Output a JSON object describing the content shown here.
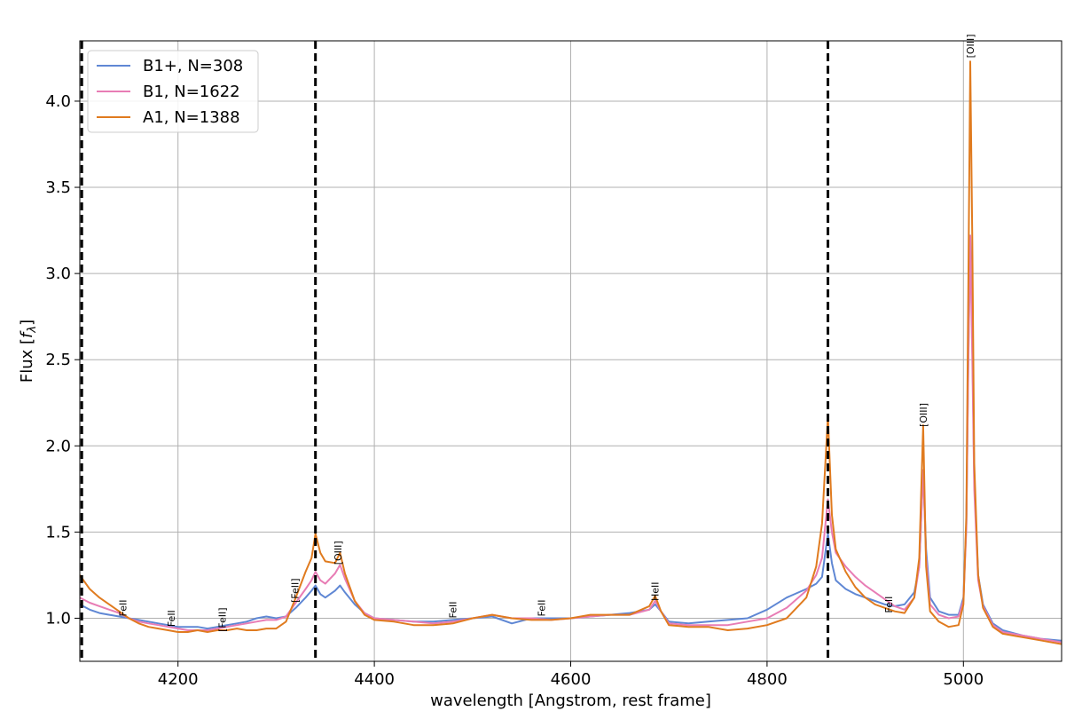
{
  "chart_data": {
    "type": "line",
    "title": "",
    "xlabel": "wavelength [Angstrom, rest frame]",
    "ylabel": "Flux [fλ]",
    "xlim": [
      4100,
      5100
    ],
    "ylim": [
      0.75,
      4.35
    ],
    "xticks": [
      4200,
      4400,
      4600,
      4800,
      5000
    ],
    "yticks": [
      1.0,
      1.5,
      2.0,
      2.5,
      3.0,
      3.5,
      4.0
    ],
    "xtick_labels": [
      "4200",
      "4400",
      "4600",
      "4800",
      "5000"
    ],
    "ytick_labels": [
      "1.0",
      "1.5",
      "2.0",
      "2.5",
      "3.0",
      "3.5",
      "4.0"
    ],
    "grid": true,
    "legend_position": "top-left",
    "vlines": [
      4102,
      4340,
      4862
    ],
    "line_labels": [
      {
        "text": "FeII",
        "x": 4144,
        "y": 1.01
      },
      {
        "text": "FeII",
        "x": 4193,
        "y": 0.95
      },
      {
        "text": "[FeII]",
        "x": 4245,
        "y": 0.92
      },
      {
        "text": "[FeII]",
        "x": 4319,
        "y": 1.09
      },
      {
        "text": "[OIII]",
        "x": 4363,
        "y": 1.31
      },
      {
        "text": "FeII",
        "x": 4480,
        "y": 1.0
      },
      {
        "text": "FeII",
        "x": 4570,
        "y": 1.01
      },
      {
        "text": "HeII",
        "x": 4686,
        "y": 1.1
      },
      {
        "text": "FeII",
        "x": 4924,
        "y": 1.03
      },
      {
        "text": "[OIII]",
        "x": 4959,
        "y": 2.11
      },
      {
        "text": "[OIII]",
        "x": 5007,
        "y": 4.25
      }
    ],
    "series": [
      {
        "name": "B1+, N=308",
        "color": "#5f87d4",
        "x": [
          4100,
          4110,
          4120,
          4130,
          4140,
          4150,
          4160,
          4170,
          4180,
          4190,
          4200,
          4210,
          4220,
          4230,
          4240,
          4250,
          4260,
          4270,
          4280,
          4290,
          4300,
          4310,
          4320,
          4330,
          4336,
          4340,
          4345,
          4350,
          4360,
          4365,
          4370,
          4380,
          4390,
          4400,
          4420,
          4440,
          4460,
          4480,
          4500,
          4520,
          4540,
          4560,
          4580,
          4600,
          4620,
          4640,
          4660,
          4680,
          4686,
          4692,
          4700,
          4720,
          4740,
          4760,
          4780,
          4800,
          4820,
          4840,
          4850,
          4856,
          4862,
          4866,
          4870,
          4880,
          4890,
          4900,
          4910,
          4920,
          4930,
          4940,
          4950,
          4955,
          4959,
          4962,
          4966,
          4975,
          4985,
          4995,
          5000,
          5003,
          5005,
          5007,
          5009,
          5011,
          5015,
          5020,
          5030,
          5040,
          5060,
          5080,
          5100
        ],
        "y": [
          1.08,
          1.05,
          1.03,
          1.02,
          1.01,
          1.0,
          0.99,
          0.98,
          0.97,
          0.96,
          0.95,
          0.95,
          0.95,
          0.94,
          0.95,
          0.96,
          0.97,
          0.98,
          1.0,
          1.01,
          1.0,
          1.01,
          1.06,
          1.12,
          1.16,
          1.19,
          1.14,
          1.12,
          1.16,
          1.19,
          1.15,
          1.08,
          1.03,
          1.0,
          0.99,
          0.98,
          0.98,
          0.99,
          1.0,
          1.01,
          0.97,
          1.0,
          1.0,
          1.0,
          1.01,
          1.02,
          1.03,
          1.05,
          1.08,
          1.04,
          0.98,
          0.97,
          0.98,
          0.99,
          1.0,
          1.05,
          1.12,
          1.17,
          1.2,
          1.24,
          1.49,
          1.32,
          1.22,
          1.17,
          1.14,
          1.12,
          1.1,
          1.08,
          1.07,
          1.08,
          1.15,
          1.3,
          1.86,
          1.4,
          1.12,
          1.04,
          1.02,
          1.02,
          1.12,
          1.55,
          2.5,
          3.22,
          2.6,
          1.8,
          1.25,
          1.08,
          0.97,
          0.93,
          0.9,
          0.88,
          0.87
        ]
      },
      {
        "name": "B1, N=1622",
        "color": "#e87db5",
        "x": [
          4100,
          4110,
          4120,
          4130,
          4140,
          4150,
          4160,
          4170,
          4180,
          4190,
          4200,
          4210,
          4220,
          4230,
          4240,
          4250,
          4260,
          4270,
          4280,
          4290,
          4300,
          4310,
          4320,
          4330,
          4336,
          4340,
          4345,
          4350,
          4360,
          4365,
          4370,
          4380,
          4390,
          4400,
          4420,
          4440,
          4460,
          4480,
          4500,
          4520,
          4540,
          4560,
          4580,
          4600,
          4620,
          4640,
          4660,
          4680,
          4686,
          4692,
          4700,
          4720,
          4740,
          4760,
          4780,
          4800,
          4820,
          4840,
          4850,
          4856,
          4862,
          4866,
          4870,
          4880,
          4890,
          4900,
          4910,
          4920,
          4930,
          4940,
          4950,
          4955,
          4959,
          4962,
          4966,
          4975,
          4985,
          4995,
          5000,
          5003,
          5005,
          5007,
          5009,
          5011,
          5015,
          5020,
          5030,
          5040,
          5060,
          5080,
          5100
        ],
        "y": [
          1.12,
          1.09,
          1.07,
          1.05,
          1.03,
          1.0,
          0.98,
          0.97,
          0.96,
          0.95,
          0.94,
          0.93,
          0.93,
          0.93,
          0.94,
          0.95,
          0.96,
          0.97,
          0.98,
          0.99,
          0.99,
          1.01,
          1.09,
          1.17,
          1.22,
          1.27,
          1.22,
          1.2,
          1.26,
          1.31,
          1.23,
          1.1,
          1.03,
          1.0,
          0.99,
          0.98,
          0.97,
          0.98,
          1.0,
          1.02,
          1.0,
          1.0,
          0.99,
          1.0,
          1.01,
          1.02,
          1.02,
          1.05,
          1.1,
          1.04,
          0.97,
          0.96,
          0.96,
          0.96,
          0.98,
          1.0,
          1.06,
          1.16,
          1.25,
          1.35,
          1.69,
          1.5,
          1.38,
          1.3,
          1.24,
          1.19,
          1.15,
          1.11,
          1.07,
          1.05,
          1.12,
          1.3,
          1.86,
          1.35,
          1.08,
          1.02,
          1.0,
          1.01,
          1.1,
          1.52,
          2.45,
          3.22,
          2.5,
          1.75,
          1.22,
          1.07,
          0.96,
          0.92,
          0.9,
          0.88,
          0.86
        ]
      },
      {
        "name": "A1, N=1388",
        "color": "#e07b1f",
        "x": [
          4100,
          4110,
          4120,
          4130,
          4140,
          4150,
          4160,
          4170,
          4180,
          4190,
          4200,
          4210,
          4220,
          4230,
          4240,
          4250,
          4260,
          4270,
          4280,
          4290,
          4300,
          4310,
          4320,
          4330,
          4336,
          4340,
          4345,
          4350,
          4360,
          4365,
          4370,
          4380,
          4390,
          4400,
          4420,
          4440,
          4460,
          4480,
          4500,
          4520,
          4540,
          4560,
          4580,
          4600,
          4620,
          4640,
          4660,
          4680,
          4686,
          4692,
          4700,
          4720,
          4740,
          4760,
          4780,
          4800,
          4820,
          4840,
          4850,
          4856,
          4862,
          4866,
          4870,
          4880,
          4890,
          4900,
          4910,
          4920,
          4930,
          4940,
          4950,
          4955,
          4959,
          4962,
          4966,
          4975,
          4985,
          4995,
          5000,
          5003,
          5005,
          5007,
          5009,
          5011,
          5015,
          5020,
          5030,
          5040,
          5060,
          5080,
          5100
        ],
        "y": [
          1.25,
          1.17,
          1.12,
          1.08,
          1.04,
          1.0,
          0.97,
          0.95,
          0.94,
          0.93,
          0.92,
          0.92,
          0.93,
          0.92,
          0.93,
          0.93,
          0.94,
          0.93,
          0.93,
          0.94,
          0.94,
          0.98,
          1.12,
          1.27,
          1.35,
          1.49,
          1.38,
          1.33,
          1.32,
          1.38,
          1.26,
          1.1,
          1.02,
          0.99,
          0.98,
          0.96,
          0.96,
          0.97,
          1.0,
          1.02,
          1.0,
          0.99,
          0.99,
          1.0,
          1.02,
          1.02,
          1.02,
          1.07,
          1.13,
          1.04,
          0.96,
          0.95,
          0.95,
          0.93,
          0.94,
          0.96,
          1.0,
          1.12,
          1.3,
          1.55,
          2.17,
          1.6,
          1.4,
          1.27,
          1.18,
          1.12,
          1.08,
          1.06,
          1.04,
          1.03,
          1.12,
          1.35,
          2.12,
          1.3,
          1.04,
          0.98,
          0.95,
          0.96,
          1.08,
          1.6,
          2.9,
          4.23,
          3.2,
          1.9,
          1.25,
          1.06,
          0.95,
          0.91,
          0.89,
          0.87,
          0.85
        ]
      }
    ]
  }
}
